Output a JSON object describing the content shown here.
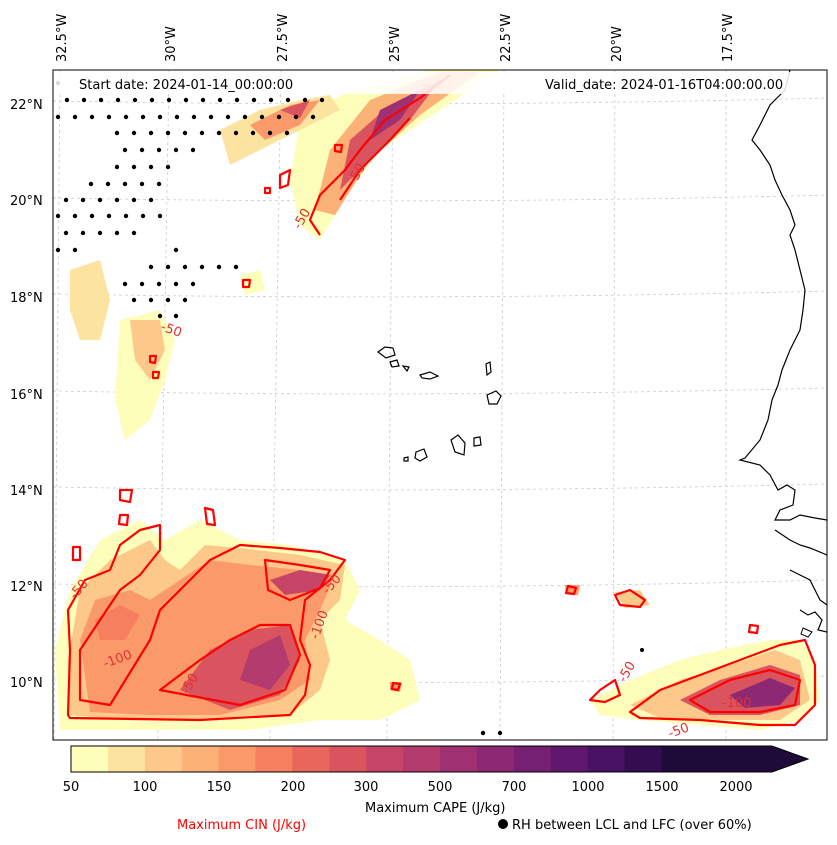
{
  "map": {
    "start_date": "Start date: 2024-01-14_00:00:00",
    "valid_date": "Valid_date: 2024-01-16T04:00:00.00",
    "lon_labels": [
      "32.5°W",
      "30°W",
      "27.5°W",
      "25°W",
      "22.5°W",
      "20°W",
      "17.5°W"
    ],
    "lat_labels": [
      "22°N",
      "20°N",
      "18°N",
      "16°N",
      "14°N",
      "12°N",
      "10°N"
    ],
    "contour_labels": [
      "-50",
      "-50",
      "-50",
      "-100",
      "-50",
      "-100",
      "-50",
      "-50",
      "-50",
      "-100",
      "-50"
    ]
  },
  "colorbar": {
    "label": "Maximum CAPE (J/kg)",
    "ticks": [
      "50",
      "100",
      "150",
      "200",
      "300",
      "500",
      "700",
      "1000",
      "1500",
      "2000"
    ],
    "colors": [
      "#fefebb",
      "#fde3a0",
      "#fdc98a",
      "#fcb177",
      "#fa9a6a",
      "#f57f5f",
      "#e8665b",
      "#d9545f",
      "#c64566",
      "#b33b6e",
      "#9f3173",
      "#8c2874",
      "#762073",
      "#60186e",
      "#4a1263",
      "#330d4f",
      "#1f0b3a"
    ]
  },
  "legend": {
    "cin_label": "Maximum CIN (J/kg)",
    "rh_label": "RH between LCL and LFC (over 60%)",
    "cin_color": "#ff0000"
  }
}
